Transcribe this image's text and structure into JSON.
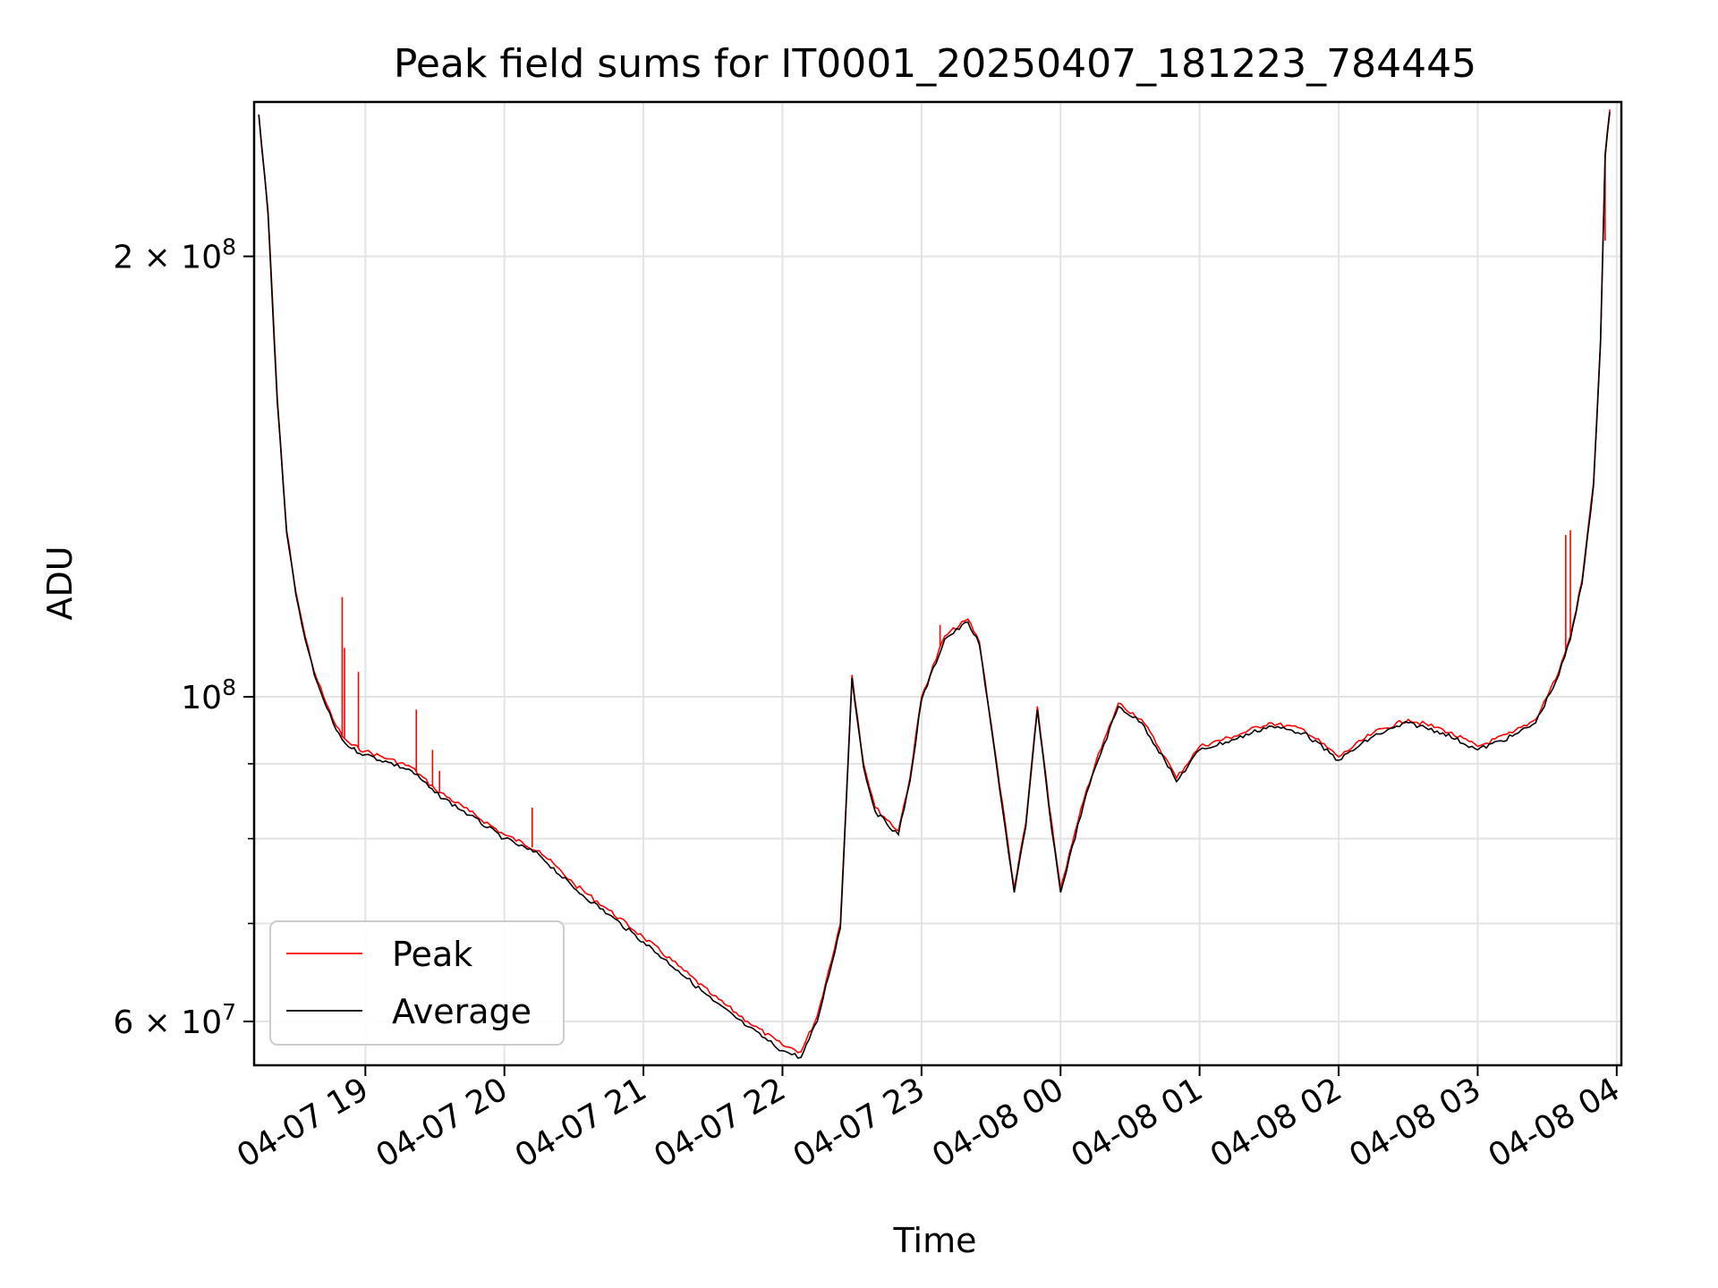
{
  "chart_data": {
    "type": "line",
    "title": "Peak field sums for IT0001_20250407_181223_784445",
    "xlabel": "Time",
    "ylabel": "ADU",
    "yscale": "log",
    "grid": true,
    "legend_position": "lower-left",
    "xlim": [
      "2025-04-07 18:12",
      "2025-04-08 04:02"
    ],
    "ylim": [
      56000000,
      255000000
    ],
    "x_ticks": [
      "04-07 19",
      "04-07 20",
      "04-07 21",
      "04-07 22",
      "04-07 23",
      "04-08 00",
      "04-08 01",
      "04-08 02",
      "04-08 03",
      "04-08 04"
    ],
    "x_tick_values": [
      "2025-04-07 19:00",
      "2025-04-07 20:00",
      "2025-04-07 21:00",
      "2025-04-07 22:00",
      "2025-04-07 23:00",
      "2025-04-08 00:00",
      "2025-04-08 01:00",
      "2025-04-08 02:00",
      "2025-04-08 03:00",
      "2025-04-08 04:00"
    ],
    "y_major_ticks": [
      {
        "value": 60000000,
        "mantissa": "6",
        "exponent": "7"
      },
      {
        "value": 100000000,
        "mantissa": "",
        "exponent": "8"
      },
      {
        "value": 200000000,
        "mantissa": "2",
        "exponent": "8"
      }
    ],
    "y_minor_ticks": [
      70000000,
      80000000,
      90000000
    ],
    "series": [
      {
        "name": "Peak",
        "color": "#ff0000",
        "x": [
          "2025-04-07 18:14",
          "2025-04-07 18:18",
          "2025-04-07 18:22",
          "2025-04-07 18:26",
          "2025-04-07 18:30",
          "2025-04-07 18:34",
          "2025-04-07 18:38",
          "2025-04-07 18:42",
          "2025-04-07 18:46",
          "2025-04-07 18:50",
          "2025-04-07 18:54",
          "2025-04-07 19:00",
          "2025-04-07 19:10",
          "2025-04-07 19:20",
          "2025-04-07 19:30",
          "2025-04-07 19:45",
          "2025-04-07 20:00",
          "2025-04-07 20:15",
          "2025-04-07 20:30",
          "2025-04-07 20:45",
          "2025-04-07 21:00",
          "2025-04-07 21:15",
          "2025-04-07 21:30",
          "2025-04-07 21:45",
          "2025-04-07 22:00",
          "2025-04-07 22:08",
          "2025-04-07 22:15",
          "2025-04-07 22:25",
          "2025-04-07 22:30",
          "2025-04-07 22:35",
          "2025-04-07 22:40",
          "2025-04-07 22:50",
          "2025-04-07 22:55",
          "2025-04-07 23:00",
          "2025-04-07 23:10",
          "2025-04-07 23:20",
          "2025-04-07 23:25",
          "2025-04-07 23:30",
          "2025-04-07 23:40",
          "2025-04-07 23:45",
          "2025-04-07 23:50",
          "2025-04-07 23:55",
          "2025-04-08 00:00",
          "2025-04-08 00:10",
          "2025-04-08 00:15",
          "2025-04-08 00:25",
          "2025-04-08 00:35",
          "2025-04-08 00:45",
          "2025-04-08 00:50",
          "2025-04-08 01:00",
          "2025-04-08 01:15",
          "2025-04-08 01:30",
          "2025-04-08 01:45",
          "2025-04-08 02:00",
          "2025-04-08 02:15",
          "2025-04-08 02:30",
          "2025-04-08 02:45",
          "2025-04-08 03:00",
          "2025-04-08 03:15",
          "2025-04-08 03:25",
          "2025-04-08 03:35",
          "2025-04-08 03:40",
          "2025-04-08 03:45",
          "2025-04-08 03:50",
          "2025-04-08 03:53",
          "2025-04-08 03:55",
          "2025-04-08 03:57"
        ],
        "values": [
          250000000,
          215000000,
          160000000,
          130000000,
          118000000,
          110000000,
          104000000,
          100000000,
          96500000,
          94000000,
          92700000,
          91800000,
          90700000,
          89500000,
          86500000,
          83500000,
          80500000,
          78500000,
          74500000,
          71500000,
          68500000,
          65500000,
          62500000,
          60000000,
          57800000,
          57200000,
          60500000,
          70000000,
          103500000,
          90000000,
          84000000,
          81000000,
          88000000,
          100000000,
          110000000,
          113000000,
          109000000,
          96000000,
          74000000,
          82000000,
          98500000,
          84500000,
          74000000,
          85000000,
          90000000,
          99000000,
          96500000,
          91000000,
          88000000,
          92500000,
          94000000,
          96000000,
          95000000,
          91000000,
          94500000,
          96500000,
          95000000,
          92500000,
          94500000,
          96500000,
          104000000,
          110000000,
          120000000,
          140000000,
          175000000,
          235000000,
          252000000
        ],
        "spikes": [
          {
            "x": "2025-04-07 18:50",
            "y": 117000000
          },
          {
            "x": "2025-04-07 18:51",
            "y": 108000000
          },
          {
            "x": "2025-04-07 18:57",
            "y": 104000000
          },
          {
            "x": "2025-04-07 19:22",
            "y": 98000000
          },
          {
            "x": "2025-04-07 19:29",
            "y": 92000000
          },
          {
            "x": "2025-04-07 19:32",
            "y": 89000000
          },
          {
            "x": "2025-04-07 20:12",
            "y": 84000000
          },
          {
            "x": "2025-04-07 23:08",
            "y": 112000000
          },
          {
            "x": "2025-04-08 03:38",
            "y": 129000000
          },
          {
            "x": "2025-04-08 03:40",
            "y": 130000000
          },
          {
            "x": "2025-04-08 03:55",
            "y": 205000000
          }
        ]
      },
      {
        "name": "Average",
        "color": "#000000",
        "x": [
          "2025-04-07 18:14",
          "2025-04-07 18:18",
          "2025-04-07 18:22",
          "2025-04-07 18:26",
          "2025-04-07 18:30",
          "2025-04-07 18:34",
          "2025-04-07 18:38",
          "2025-04-07 18:42",
          "2025-04-07 18:46",
          "2025-04-07 18:50",
          "2025-04-07 18:54",
          "2025-04-07 19:00",
          "2025-04-07 19:10",
          "2025-04-07 19:20",
          "2025-04-07 19:30",
          "2025-04-07 19:45",
          "2025-04-07 20:00",
          "2025-04-07 20:15",
          "2025-04-07 20:30",
          "2025-04-07 20:45",
          "2025-04-07 21:00",
          "2025-04-07 21:15",
          "2025-04-07 21:30",
          "2025-04-07 21:45",
          "2025-04-07 22:00",
          "2025-04-07 22:08",
          "2025-04-07 22:15",
          "2025-04-07 22:25",
          "2025-04-07 22:30",
          "2025-04-07 22:35",
          "2025-04-07 22:40",
          "2025-04-07 22:50",
          "2025-04-07 22:55",
          "2025-04-07 23:00",
          "2025-04-07 23:10",
          "2025-04-07 23:20",
          "2025-04-07 23:25",
          "2025-04-07 23:30",
          "2025-04-07 23:40",
          "2025-04-07 23:45",
          "2025-04-07 23:50",
          "2025-04-07 23:55",
          "2025-04-08 00:00",
          "2025-04-08 00:10",
          "2025-04-08 00:15",
          "2025-04-08 00:25",
          "2025-04-08 00:35",
          "2025-04-08 00:45",
          "2025-04-08 00:50",
          "2025-04-08 01:00",
          "2025-04-08 01:15",
          "2025-04-08 01:30",
          "2025-04-08 01:45",
          "2025-04-08 02:00",
          "2025-04-08 02:15",
          "2025-04-08 02:30",
          "2025-04-08 02:45",
          "2025-04-08 03:00",
          "2025-04-08 03:15",
          "2025-04-08 03:25",
          "2025-04-08 03:35",
          "2025-04-08 03:40",
          "2025-04-08 03:45",
          "2025-04-08 03:50",
          "2025-04-08 03:53",
          "2025-04-08 03:55",
          "2025-04-08 03:57"
        ],
        "values": [
          250000000,
          214000000,
          159000000,
          129500000,
          117500000,
          109500000,
          103500000,
          99500000,
          96000000,
          93500000,
          92200000,
          91300000,
          90200000,
          89000000,
          86000000,
          83000000,
          80000000,
          78000000,
          74000000,
          71000000,
          68000000,
          65000000,
          62000000,
          59500000,
          57300000,
          56700000,
          60000000,
          69500000,
          103000000,
          89500000,
          83500000,
          80500000,
          87500000,
          99500000,
          109500000,
          112500000,
          108500000,
          95500000,
          73500000,
          81500000,
          98000000,
          84000000,
          73500000,
          84500000,
          89500000,
          98500000,
          96000000,
          90500000,
          87500000,
          92000000,
          93500000,
          95500000,
          94500000,
          90500000,
          94000000,
          96000000,
          94500000,
          92000000,
          94000000,
          96000000,
          103500000,
          109500000,
          119500000,
          139500000,
          174500000,
          234000000,
          251000000
        ]
      }
    ]
  }
}
